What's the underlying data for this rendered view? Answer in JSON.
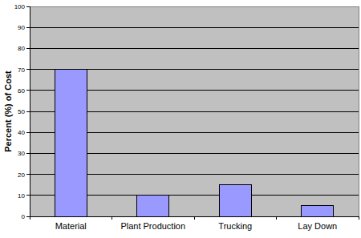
{
  "chart_data": {
    "type": "bar",
    "y_label": "Percent (%) of Cost",
    "categories": [
      "Material",
      "Plant Production",
      "Trucking",
      "Lay Down"
    ],
    "values": [
      70,
      10,
      15,
      5
    ],
    "color": "#9999ff",
    "ylim": [
      0,
      100
    ],
    "yticks": [
      0,
      10,
      20,
      30,
      40,
      50,
      60,
      70,
      80,
      90,
      100
    ],
    "grid": true
  }
}
